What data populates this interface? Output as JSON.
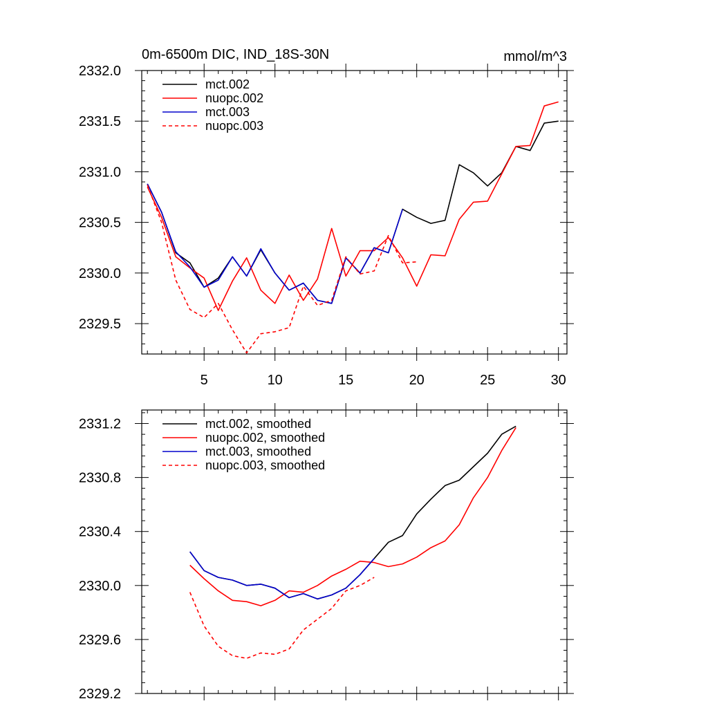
{
  "chart_data": [
    {
      "type": "line",
      "title_left": "0m-6500m DIC, IND_18S-30N",
      "title_right": "mmol/m^3",
      "xlabel": "",
      "ylabel": "",
      "xlim": [
        0.6,
        30.6
      ],
      "ylim": [
        2329.2,
        2332.0
      ],
      "xticks": [
        5,
        10,
        15,
        20,
        25,
        30
      ],
      "yticks": [
        2329.5,
        2330.0,
        2330.5,
        2331.0,
        2331.5,
        2332.0
      ],
      "ytick_labels": [
        "2329.5",
        "2330.0",
        "2330.5",
        "2331.0",
        "2331.5",
        "2332.0"
      ],
      "legend_position": "top-left",
      "series": [
        {
          "name": "mct.002",
          "color": "#000000",
          "dash": "solid",
          "x": [
            1,
            2,
            3,
            4,
            5,
            6,
            7,
            8,
            9,
            10,
            11,
            12,
            13,
            14,
            15,
            16,
            17,
            18,
            19,
            20,
            21,
            22,
            23,
            24,
            25,
            26,
            27,
            28,
            29,
            30
          ],
          "values": [
            2330.88,
            2330.6,
            2330.2,
            2330.1,
            2329.86,
            2329.95,
            2330.16,
            2329.97,
            2330.23,
            2330.0,
            2329.83,
            2329.9,
            2329.73,
            2329.7,
            2330.15,
            2330.0,
            2330.25,
            2330.2,
            2330.63,
            2330.55,
            2330.49,
            2330.52,
            2331.07,
            2330.99,
            2330.86,
            2330.99,
            2331.25,
            2331.21,
            2331.48,
            2331.5
          ]
        },
        {
          "name": "nuopc.002",
          "color": "#ff0000",
          "dash": "solid",
          "x": [
            1,
            2,
            3,
            4,
            5,
            6,
            7,
            8,
            9,
            10,
            11,
            12,
            13,
            14,
            15,
            16,
            17,
            18,
            19,
            20,
            21,
            22,
            23,
            24,
            25,
            26,
            27,
            28,
            29,
            30
          ],
          "values": [
            2330.85,
            2330.55,
            2330.16,
            2330.05,
            2329.95,
            2329.63,
            2329.92,
            2330.15,
            2329.83,
            2329.7,
            2329.98,
            2329.73,
            2329.94,
            2330.44,
            2329.97,
            2330.22,
            2330.22,
            2330.35,
            2330.15,
            2329.87,
            2330.18,
            2330.17,
            2330.53,
            2330.7,
            2330.71,
            2330.98,
            2331.25,
            2331.26,
            2331.65,
            2331.69
          ]
        },
        {
          "name": "mct.003",
          "color": "#0000cc",
          "dash": "solid",
          "x": [
            1,
            2,
            3,
            4,
            5,
            6,
            7,
            8,
            9,
            10,
            11,
            12,
            13,
            14,
            15,
            16,
            17,
            18,
            19
          ],
          "values": [
            2330.88,
            2330.6,
            2330.21,
            2330.06,
            2329.86,
            2329.93,
            2330.16,
            2329.97,
            2330.24,
            2330.0,
            2329.83,
            2329.9,
            2329.73,
            2329.7,
            2330.15,
            2330.0,
            2330.25,
            2330.2,
            2330.63
          ]
        },
        {
          "name": "nuopc.003",
          "color": "#ff0000",
          "dash": "dashed",
          "x": [
            1,
            2,
            3,
            4,
            5,
            6,
            7,
            8,
            9,
            10,
            11,
            12,
            13,
            14,
            15,
            16,
            17,
            18,
            19,
            20
          ],
          "values": [
            2330.87,
            2330.5,
            2329.93,
            2329.64,
            2329.56,
            2329.7,
            2329.44,
            2329.21,
            2329.4,
            2329.42,
            2329.46,
            2329.87,
            2329.68,
            2329.73,
            2330.16,
            2329.99,
            2330.02,
            2330.37,
            2330.1,
            2330.11
          ]
        }
      ]
    },
    {
      "type": "line",
      "title_left": "",
      "title_right": "",
      "xlabel": "",
      "ylabel": "",
      "xlim": [
        0.6,
        30.6
      ],
      "ylim": [
        2329.2,
        2331.3
      ],
      "xticks": [
        5,
        10,
        15,
        20,
        25,
        30
      ],
      "yticks": [
        2329.2,
        2329.6,
        2330.0,
        2330.4,
        2330.8,
        2331.2
      ],
      "ytick_labels": [
        "2329.2",
        "2329.6",
        "2330.0",
        "2330.4",
        "2330.8",
        "2331.2"
      ],
      "legend_position": "top-left",
      "series": [
        {
          "name": "mct.002, smoothed",
          "color": "#000000",
          "dash": "solid",
          "x": [
            4,
            5,
            6,
            7,
            8,
            9,
            10,
            11,
            12,
            13,
            14,
            15,
            16,
            17,
            18,
            19,
            20,
            21,
            22,
            23,
            24,
            25,
            26,
            27
          ],
          "values": [
            2330.25,
            2330.11,
            2330.06,
            2330.04,
            2330.0,
            2330.01,
            2329.98,
            2329.91,
            2329.94,
            2329.9,
            2329.93,
            2329.98,
            2330.08,
            2330.2,
            2330.32,
            2330.37,
            2330.53,
            2330.64,
            2330.74,
            2330.78,
            2330.88,
            2330.98,
            2331.12,
            2331.18
          ]
        },
        {
          "name": "nuopc.002, smoothed",
          "color": "#ff0000",
          "dash": "solid",
          "x": [
            4,
            5,
            6,
            7,
            8,
            9,
            10,
            11,
            12,
            13,
            14,
            15,
            16,
            17,
            18,
            19,
            20,
            21,
            22,
            23,
            24,
            25,
            26,
            27
          ],
          "values": [
            2330.15,
            2330.05,
            2329.96,
            2329.89,
            2329.88,
            2329.85,
            2329.89,
            2329.96,
            2329.95,
            2330.0,
            2330.07,
            2330.12,
            2330.18,
            2330.17,
            2330.14,
            2330.16,
            2330.21,
            2330.28,
            2330.33,
            2330.45,
            2330.65,
            2330.8,
            2331.0,
            2331.17
          ]
        },
        {
          "name": "mct.003, smoothed",
          "color": "#0000cc",
          "dash": "solid",
          "x": [
            4,
            5,
            6,
            7,
            8,
            9,
            10,
            11,
            12,
            13,
            14,
            15,
            16,
            17
          ],
          "values": [
            2330.25,
            2330.11,
            2330.06,
            2330.04,
            2330.0,
            2330.01,
            2329.98,
            2329.91,
            2329.94,
            2329.9,
            2329.93,
            2329.98,
            2330.08,
            2330.2
          ]
        },
        {
          "name": "nuopc.003, smoothed",
          "color": "#ff0000",
          "dash": "dashed",
          "x": [
            4,
            5,
            6,
            7,
            8,
            9,
            10,
            11,
            12,
            13,
            14,
            15,
            16,
            17
          ],
          "values": [
            2329.95,
            2329.7,
            2329.55,
            2329.48,
            2329.46,
            2329.5,
            2329.49,
            2329.53,
            2329.67,
            2329.75,
            2329.83,
            2329.96,
            2330.0,
            2330.06
          ]
        }
      ]
    }
  ]
}
